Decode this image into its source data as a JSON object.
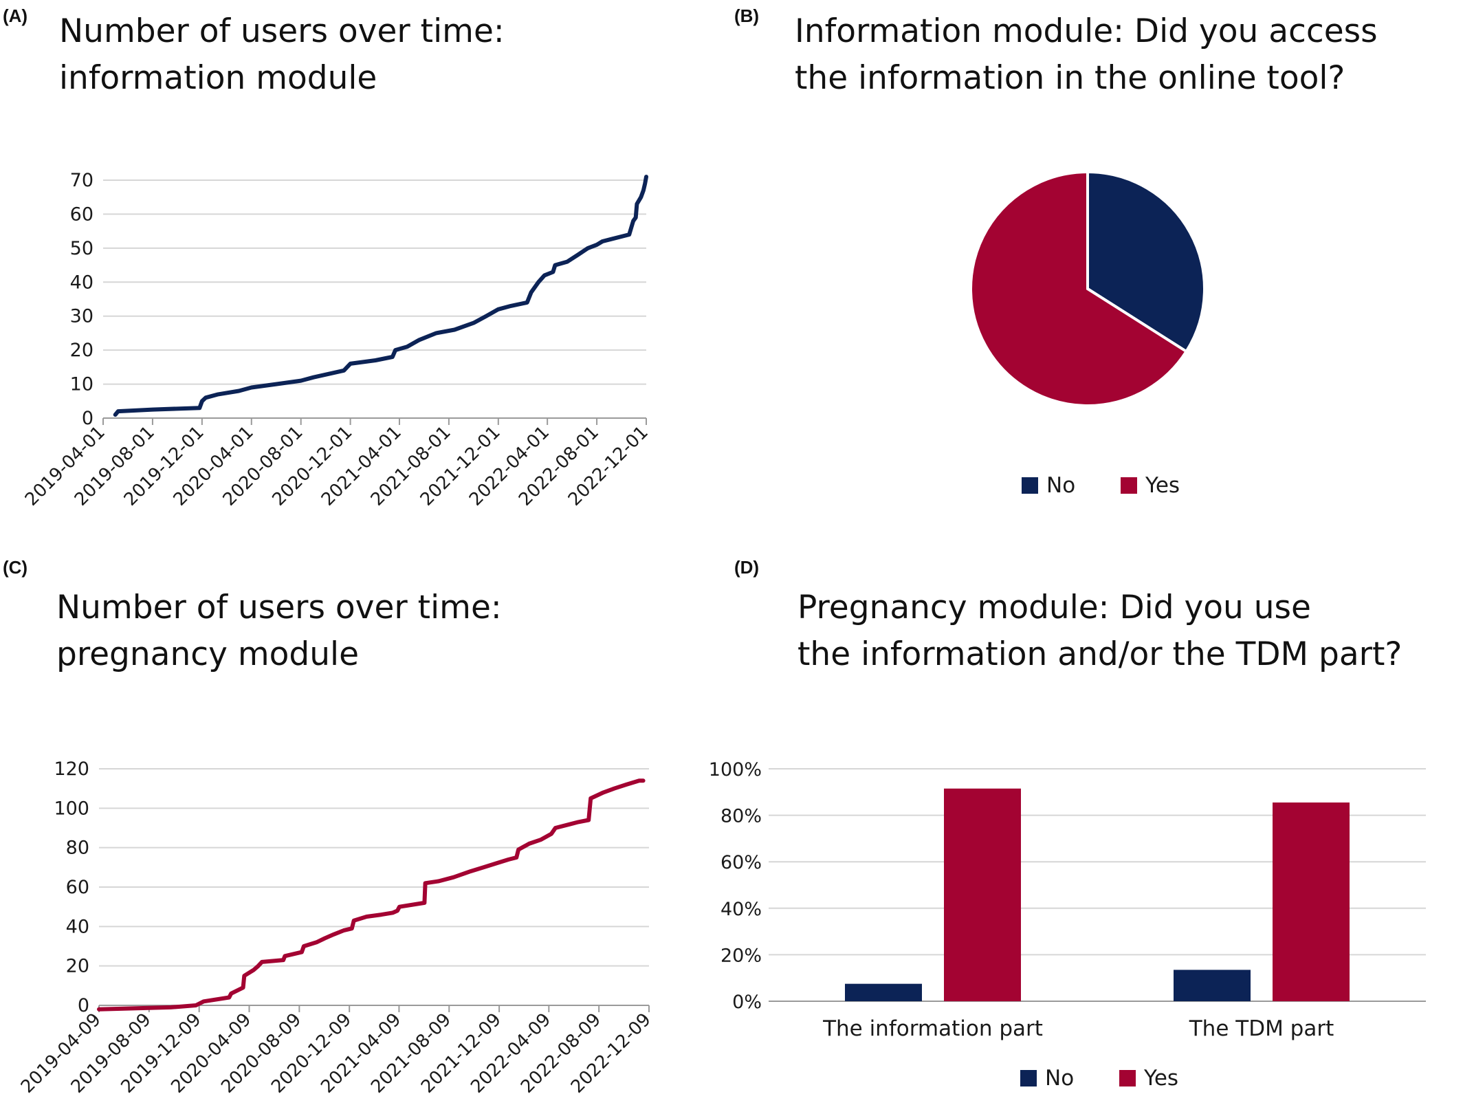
{
  "colors": {
    "navy": "#0c2356",
    "crimson": "#a30332",
    "grid": "#d6d6d6",
    "axis": "#9a9a9a"
  },
  "panels": {
    "A": {
      "letter": "(A)",
      "title": [
        "Number of users over time:",
        "information module"
      ]
    },
    "B": {
      "letter": "(B)",
      "title": [
        "Information module: Did you access",
        "the information in the online tool?"
      ]
    },
    "C": {
      "letter": "(C)",
      "title": [
        "Number of users over time:",
        "pregnancy module"
      ]
    },
    "D": {
      "letter": "(D)",
      "title": [
        "Pregnancy module: Did you use",
        "the information and/or the TDM part?"
      ]
    }
  },
  "chart_data": [
    {
      "panel": "A",
      "type": "line",
      "x_type": "date",
      "xlim": [
        "2019-04-01",
        "2022-12-01"
      ],
      "ylim": [
        0,
        70
      ],
      "yticks": [
        0,
        10,
        20,
        30,
        40,
        50,
        60,
        70
      ],
      "xticks": [
        "2019-04-01",
        "2019-08-01",
        "2019-12-01",
        "2020-04-01",
        "2020-08-01",
        "2020-12-01",
        "2021-04-01",
        "2021-08-01",
        "2021-12-01",
        "2022-04-01",
        "2022-08-01",
        "2022-12-01"
      ],
      "grid": true,
      "series": [
        {
          "color": "#0c2356",
          "points": [
            [
              "2019-05-01",
              1
            ],
            [
              "2019-05-08",
              2
            ],
            [
              "2019-08-01",
              2.5
            ],
            [
              "2019-11-25",
              3
            ],
            [
              "2019-12-01",
              5
            ],
            [
              "2019-12-10",
              6
            ],
            [
              "2020-01-10",
              7
            ],
            [
              "2020-03-01",
              8
            ],
            [
              "2020-04-01",
              9
            ],
            [
              "2020-06-01",
              10
            ],
            [
              "2020-08-01",
              11
            ],
            [
              "2020-09-01",
              12
            ],
            [
              "2020-11-15",
              14
            ],
            [
              "2020-12-01",
              16
            ],
            [
              "2021-02-01",
              17
            ],
            [
              "2021-03-15",
              18
            ],
            [
              "2021-03-22",
              20
            ],
            [
              "2021-04-20",
              21
            ],
            [
              "2021-05-20",
              23
            ],
            [
              "2021-07-01",
              25
            ],
            [
              "2021-08-15",
              26
            ],
            [
              "2021-10-01",
              28
            ],
            [
              "2021-11-01",
              30
            ],
            [
              "2021-12-01",
              32
            ],
            [
              "2022-01-01",
              33
            ],
            [
              "2022-02-10",
              34
            ],
            [
              "2022-02-20",
              37
            ],
            [
              "2022-03-10",
              40
            ],
            [
              "2022-03-25",
              42
            ],
            [
              "2022-04-15",
              43
            ],
            [
              "2022-04-20",
              45
            ],
            [
              "2022-05-20",
              46
            ],
            [
              "2022-06-15",
              48
            ],
            [
              "2022-07-10",
              50
            ],
            [
              "2022-08-01",
              51
            ],
            [
              "2022-08-15",
              52
            ],
            [
              "2022-10-20",
              54
            ],
            [
              "2022-10-30",
              58
            ],
            [
              "2022-11-05",
              59
            ],
            [
              "2022-11-08",
              63
            ],
            [
              "2022-11-18",
              65
            ],
            [
              "2022-11-24",
              67
            ],
            [
              "2022-11-28",
              69
            ],
            [
              "2022-12-01",
              71
            ]
          ]
        }
      ]
    },
    {
      "panel": "B",
      "type": "pie",
      "legend_position": "bottom",
      "slices": [
        {
          "label": "No",
          "value": 34,
          "color": "#0c2356"
        },
        {
          "label": "Yes",
          "value": 66,
          "color": "#a30332"
        }
      ]
    },
    {
      "panel": "C",
      "type": "line",
      "x_type": "date",
      "xlim": [
        "2019-04-09",
        "2022-12-09"
      ],
      "ylim": [
        0,
        120
      ],
      "yticks": [
        0,
        20,
        40,
        60,
        80,
        100,
        120
      ],
      "xticks": [
        "2019-04-09",
        "2019-08-09",
        "2019-12-09",
        "2020-04-09",
        "2020-08-09",
        "2020-12-09",
        "2021-04-09",
        "2021-08-09",
        "2021-12-09",
        "2022-04-09",
        "2022-08-09",
        "2022-12-09"
      ],
      "grid": true,
      "series": [
        {
          "color": "#a30332",
          "points": [
            [
              "2019-04-09",
              -2
            ],
            [
              "2019-10-01",
              -1
            ],
            [
              "2019-12-01",
              0
            ],
            [
              "2019-12-20",
              2
            ],
            [
              "2020-02-20",
              4
            ],
            [
              "2020-02-25",
              6
            ],
            [
              "2020-03-25",
              9
            ],
            [
              "2020-03-28",
              15
            ],
            [
              "2020-04-20",
              18
            ],
            [
              "2020-05-01",
              20
            ],
            [
              "2020-05-10",
              22
            ],
            [
              "2020-07-01",
              23
            ],
            [
              "2020-07-05",
              25
            ],
            [
              "2020-08-15",
              27
            ],
            [
              "2020-08-20",
              30
            ],
            [
              "2020-09-20",
              32
            ],
            [
              "2020-10-10",
              34
            ],
            [
              "2020-11-01",
              36
            ],
            [
              "2020-11-25",
              38
            ],
            [
              "2020-12-15",
              39
            ],
            [
              "2020-12-20",
              43
            ],
            [
              "2021-01-20",
              45
            ],
            [
              "2021-02-25",
              46
            ],
            [
              "2021-03-25",
              47
            ],
            [
              "2021-04-05",
              48
            ],
            [
              "2021-04-10",
              50
            ],
            [
              "2021-06-10",
              52
            ],
            [
              "2021-06-12",
              62
            ],
            [
              "2021-07-15",
              63
            ],
            [
              "2021-08-20",
              65
            ],
            [
              "2021-09-30",
              68
            ],
            [
              "2021-11-01",
              70
            ],
            [
              "2021-12-01",
              72
            ],
            [
              "2022-01-01",
              74
            ],
            [
              "2022-01-20",
              75
            ],
            [
              "2022-01-25",
              79
            ],
            [
              "2022-02-20",
              82
            ],
            [
              "2022-03-20",
              84
            ],
            [
              "2022-04-15",
              87
            ],
            [
              "2022-04-25",
              90
            ],
            [
              "2022-06-01",
              92
            ],
            [
              "2022-06-20",
              93
            ],
            [
              "2022-07-15",
              94
            ],
            [
              "2022-07-20",
              105
            ],
            [
              "2022-08-20",
              108
            ],
            [
              "2022-09-15",
              110
            ],
            [
              "2022-10-15",
              112
            ],
            [
              "2022-11-15",
              114
            ],
            [
              "2022-11-25",
              114
            ]
          ]
        }
      ]
    },
    {
      "panel": "D",
      "type": "bar",
      "categories": [
        "The information part",
        "The TDM part"
      ],
      "ylim": [
        0,
        100
      ],
      "yticks": [
        0,
        20,
        40,
        60,
        80,
        100
      ],
      "y_format": "percent",
      "grid": true,
      "legend_position": "bottom",
      "series": [
        {
          "name": "No",
          "color": "#0c2356",
          "values": [
            7.5,
            13.5
          ]
        },
        {
          "name": "Yes",
          "color": "#a30332",
          "values": [
            91.5,
            85.5
          ]
        }
      ]
    }
  ]
}
